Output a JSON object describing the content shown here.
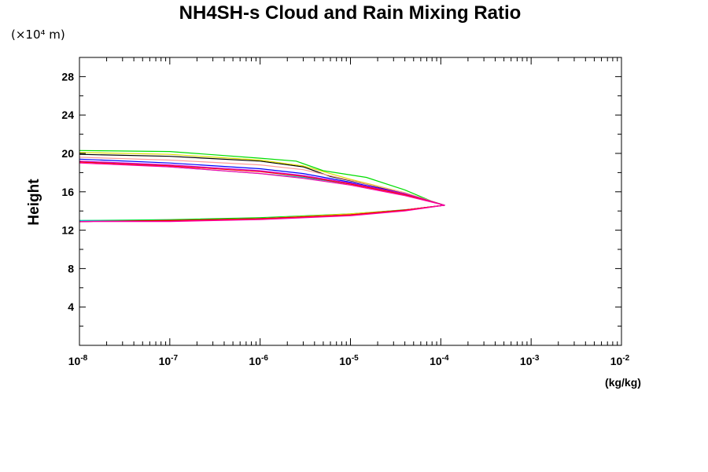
{
  "chart_data": {
    "type": "line",
    "title": "NH4SH-s Cloud and Rain Mixing Ratio",
    "ylabel": "Height",
    "ylabel_unit": "(×10⁴ m)",
    "xlabel_unit": "(kg/kg)",
    "x_scale": "log",
    "xlim": [
      1e-08,
      0.01
    ],
    "ylim": [
      0,
      30
    ],
    "grid": false,
    "x_ticks": [
      {
        "value": 1e-08,
        "base": "10",
        "exp": "-8"
      },
      {
        "value": 1e-07,
        "base": "10",
        "exp": "-7"
      },
      {
        "value": 1e-06,
        "base": "10",
        "exp": "-6"
      },
      {
        "value": 1e-05,
        "base": "10",
        "exp": "-5"
      },
      {
        "value": 0.0001,
        "base": "10",
        "exp": "-4"
      },
      {
        "value": 0.001,
        "base": "10",
        "exp": "-3"
      },
      {
        "value": 0.01,
        "base": "10",
        "exp": "-2"
      }
    ],
    "y_ticks": [
      "4",
      "8",
      "12",
      "16",
      "20",
      "24",
      "28"
    ],
    "series": [
      {
        "color": "#00dd00",
        "x": [
          1e-08,
          1e-07,
          1e-06,
          2.5e-06,
          5e-06,
          1.5e-05,
          4e-05,
          8e-05,
          0.00011,
          5e-05,
          1e-05,
          1e-06,
          1e-07,
          1e-08
        ],
        "y": [
          20.3,
          20.2,
          19.5,
          19.2,
          18.2,
          17.5,
          16.2,
          15.0,
          14.6,
          14.2,
          13.7,
          13.3,
          13.1,
          13.0
        ]
      },
      {
        "color": "#000000",
        "x": [
          1e-08,
          1e-07,
          1e-06,
          3e-06,
          6e-06,
          1.5e-05,
          4e-05,
          0.00011,
          4e-05,
          1e-05,
          1e-06,
          1e-07,
          1e-08
        ],
        "y": [
          19.9,
          19.7,
          19.2,
          18.6,
          17.6,
          16.8,
          15.8,
          14.6,
          14.1,
          13.6,
          13.2,
          13.0,
          12.9
        ]
      },
      {
        "color": "#dddd00",
        "x": [
          1e-08,
          1e-07,
          1e-06,
          3e-06,
          1e-05,
          4e-05,
          0.00011,
          4e-05,
          1e-05,
          1e-06,
          1e-07,
          1e-08
        ],
        "y": [
          20.1,
          19.9,
          19.3,
          18.7,
          17.3,
          15.9,
          14.6,
          14.1,
          13.7,
          13.2,
          13.0,
          12.9
        ]
      },
      {
        "color": "#ff9999",
        "x": [
          1e-08,
          1e-07,
          1e-06,
          3e-06,
          1e-05,
          4e-05,
          0.00011,
          4e-05,
          1e-05,
          1e-06,
          1e-07,
          1e-08
        ],
        "y": [
          19.6,
          19.3,
          18.8,
          18.3,
          17.2,
          15.9,
          14.6,
          14.1,
          13.6,
          13.2,
          13.0,
          12.9
        ]
      },
      {
        "color": "#0000ff",
        "x": [
          1e-08,
          1e-07,
          1e-06,
          3e-06,
          1e-05,
          4e-05,
          0.00011,
          4e-05,
          1e-05,
          1e-06,
          1e-07,
          1e-08
        ],
        "y": [
          19.4,
          19.0,
          18.4,
          17.9,
          17.0,
          15.8,
          14.6,
          14.1,
          13.6,
          13.2,
          13.0,
          12.9
        ]
      },
      {
        "color": "#00cccc",
        "x": [
          1e-08,
          1e-07,
          1e-06,
          3e-06,
          1e-05,
          4e-05,
          0.00011,
          4e-05,
          1e-05,
          1e-06,
          1e-07,
          1e-08
        ],
        "y": [
          19.2,
          18.6,
          17.9,
          17.5,
          16.8,
          15.7,
          14.6,
          14.1,
          13.6,
          13.2,
          13.0,
          13.0
        ]
      },
      {
        "color": "#cc00cc",
        "x": [
          1e-08,
          1e-07,
          1e-06,
          3e-06,
          1e-05,
          4e-05,
          0.00011,
          4e-05,
          1e-05,
          1e-06,
          1e-07,
          1e-08
        ],
        "y": [
          19.2,
          18.8,
          18.2,
          17.7,
          16.9,
          15.8,
          14.6,
          14.1,
          13.6,
          13.2,
          13.0,
          12.9
        ]
      },
      {
        "color": "#ff0000",
        "x": [
          1e-08,
          1e-07,
          1e-06,
          3e-06,
          1e-05,
          4e-05,
          0.00011,
          4e-05,
          1e-05,
          1e-06,
          1e-07,
          1e-08
        ],
        "y": [
          19.1,
          18.7,
          18.1,
          17.6,
          16.8,
          15.7,
          14.6,
          14.1,
          13.6,
          13.2,
          13.0,
          12.9
        ]
      },
      {
        "color": "#ff00aa",
        "x": [
          1e-08,
          1e-07,
          1e-06,
          3e-06,
          1e-05,
          4e-05,
          0.00011,
          4e-05,
          1e-05,
          1e-06,
          1e-07,
          1e-08
        ],
        "y": [
          19.0,
          18.6,
          17.9,
          17.4,
          16.7,
          15.6,
          14.6,
          14.0,
          13.5,
          13.1,
          12.9,
          12.9
        ]
      }
    ]
  }
}
